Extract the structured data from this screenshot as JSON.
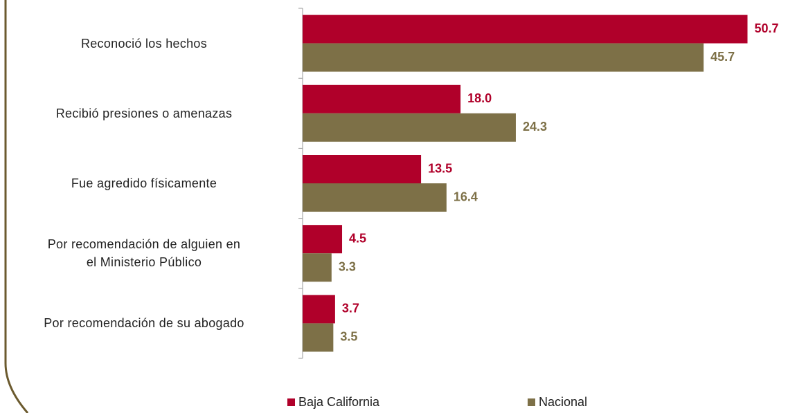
{
  "chart_data": {
    "type": "bar",
    "orientation": "horizontal",
    "categories": [
      "Reconoció los hechos",
      "Recibió presiones o amenazas",
      "Fue agredido físicamente",
      "Por recomendación de alguien en\nel Ministerio Público",
      "Por recomendación de su abogado"
    ],
    "series": [
      {
        "name": "Baja California",
        "color": "#b0002a",
        "values": [
          50.7,
          18.0,
          13.5,
          4.5,
          3.7
        ],
        "value_labels": [
          "50.7",
          "18.0",
          "13.5",
          "4.5",
          "3.7"
        ]
      },
      {
        "name": "Nacional",
        "color": "#7d7047",
        "values": [
          45.7,
          24.3,
          16.4,
          3.3,
          3.5
        ],
        "value_labels": [
          "45.7",
          "24.3",
          "16.4",
          "3.3",
          "3.5"
        ]
      }
    ],
    "xlim": [
      0,
      55
    ],
    "legend": "bottom"
  }
}
